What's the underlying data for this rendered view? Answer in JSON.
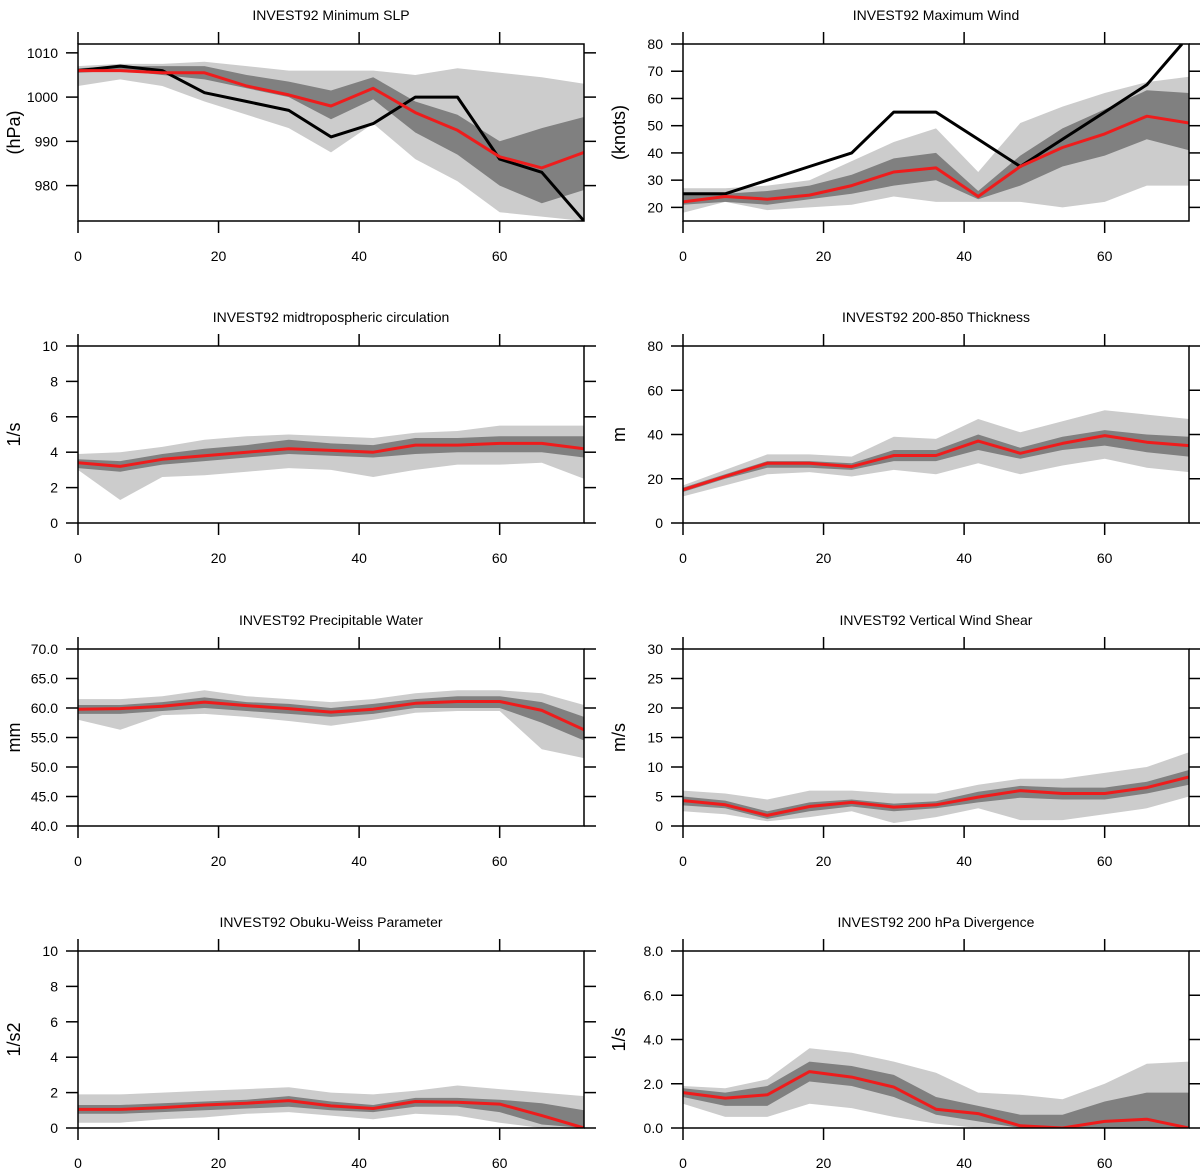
{
  "colors": {
    "outer_band": "#cccccc",
    "inner_band": "#808080",
    "mean_line": "#ee1c1c",
    "obs_line": "#000000"
  },
  "chart_data": [
    {
      "type": "line",
      "title": "INVEST92 Minimum SLP",
      "ylabel": "(hPa)",
      "xlim": [
        0,
        72
      ],
      "ylim": [
        972,
        1012
      ],
      "xticks": [
        0,
        20,
        40,
        60
      ],
      "xtick_labels": [
        "0",
        "20",
        "40",
        "60"
      ],
      "yticks": [
        980,
        990,
        1000,
        1010
      ],
      "ytick_labels": [
        "980",
        "990",
        "1000",
        "1010"
      ],
      "x": [
        0,
        6,
        12,
        18,
        24,
        30,
        36,
        42,
        48,
        54,
        60,
        66,
        72
      ],
      "outer_low": [
        1002.5,
        1004,
        1002.5,
        999,
        996,
        993,
        987.5,
        994,
        986,
        981,
        974,
        973,
        972
      ],
      "outer_high": [
        1007,
        1007.5,
        1007.5,
        1008,
        1007,
        1006,
        1006,
        1006,
        1005,
        1006.5,
        1005.5,
        1004.5,
        1003
      ],
      "inner_low": [
        1005.5,
        1006,
        1005,
        1004,
        1002,
        1000,
        995,
        999.5,
        992,
        987,
        980,
        976,
        979
      ],
      "inner_high": [
        1006.5,
        1007,
        1007,
        1007,
        1005,
        1003.5,
        1001.5,
        1004.5,
        999,
        996,
        990,
        993,
        995.5
      ],
      "mean": [
        1006,
        1006,
        1005.5,
        1005.5,
        1002.5,
        1000.5,
        998,
        1002,
        996.5,
        992.5,
        986.5,
        984,
        987.5
      ],
      "obs_x": [
        0,
        6,
        12,
        18,
        24,
        30,
        36,
        42,
        48,
        54,
        60,
        66,
        72
      ],
      "obs": [
        1006,
        1007,
        1006,
        1001,
        999,
        997,
        991,
        994,
        1000,
        1000,
        986,
        983,
        972
      ]
    },
    {
      "type": "line",
      "title": "INVEST92 Maximum Wind",
      "ylabel": "(knots)",
      "xlim": [
        0,
        72
      ],
      "ylim": [
        15,
        80
      ],
      "xticks": [
        0,
        20,
        40,
        60
      ],
      "xtick_labels": [
        "0",
        "20",
        "40",
        "60"
      ],
      "yticks": [
        20,
        30,
        40,
        50,
        60,
        70,
        80
      ],
      "ytick_labels": [
        "20",
        "30",
        "40",
        "50",
        "60",
        "70",
        "80"
      ],
      "x": [
        0,
        6,
        12,
        18,
        24,
        30,
        36,
        42,
        48,
        54,
        60,
        66,
        72
      ],
      "outer_low": [
        18,
        22,
        19,
        20,
        21,
        24,
        22,
        22,
        22,
        20,
        22,
        28,
        28
      ],
      "outer_high": [
        27,
        27,
        28,
        30,
        37,
        44,
        49,
        33,
        51,
        57,
        62,
        66,
        68
      ],
      "inner_low": [
        21,
        22,
        21,
        23,
        25,
        28,
        30,
        23,
        28,
        35,
        39,
        45,
        41
      ],
      "inner_high": [
        25,
        25,
        26,
        28,
        32,
        38,
        40,
        26,
        39,
        49,
        56,
        63,
        62
      ],
      "mean": [
        22,
        24,
        23,
        24.5,
        28,
        33,
        34.5,
        24,
        35,
        42,
        47,
        53.5,
        51
      ],
      "obs_x": [
        0,
        6,
        12,
        18,
        24,
        30,
        36,
        42,
        48,
        54,
        60,
        66,
        71
      ],
      "obs": [
        25,
        25,
        30,
        35,
        40,
        55,
        55,
        45,
        35,
        45,
        55,
        65,
        80
      ]
    },
    {
      "type": "line",
      "title": "INVEST92 midtropospheric circulation",
      "ylabel": "1/s",
      "xlim": [
        0,
        72
      ],
      "ylim": [
        0,
        10
      ],
      "xticks": [
        0,
        20,
        40,
        60
      ],
      "xtick_labels": [
        "0",
        "20",
        "40",
        "60"
      ],
      "yticks": [
        0,
        2,
        4,
        6,
        8,
        10
      ],
      "ytick_labels": [
        "0",
        "2",
        "4",
        "6",
        "8",
        "10"
      ],
      "x": [
        0,
        6,
        12,
        18,
        24,
        30,
        36,
        42,
        48,
        54,
        60,
        66,
        72
      ],
      "outer_low": [
        3.0,
        1.3,
        2.6,
        2.7,
        2.9,
        3.1,
        3.0,
        2.6,
        3.0,
        3.3,
        3.3,
        3.4,
        2.5
      ],
      "outer_high": [
        3.9,
        4.0,
        4.3,
        4.7,
        4.9,
        5.0,
        4.9,
        4.8,
        5.1,
        5.2,
        5.5,
        5.5,
        5.5
      ],
      "inner_low": [
        3.1,
        2.9,
        3.3,
        3.5,
        3.7,
        3.9,
        3.8,
        3.7,
        3.9,
        4.0,
        4.0,
        4.0,
        3.7
      ],
      "inner_high": [
        3.6,
        3.5,
        3.9,
        4.2,
        4.4,
        4.7,
        4.5,
        4.4,
        4.8,
        4.8,
        4.9,
        4.9,
        4.9
      ],
      "mean": [
        3.4,
        3.2,
        3.6,
        3.8,
        4.0,
        4.2,
        4.1,
        4.0,
        4.4,
        4.4,
        4.5,
        4.5,
        4.2
      ]
    },
    {
      "type": "line",
      "title": "INVEST92 200-850 Thickness",
      "ylabel": "m",
      "xlim": [
        0,
        72
      ],
      "ylim": [
        0,
        80
      ],
      "xticks": [
        0,
        20,
        40,
        60
      ],
      "xtick_labels": [
        "0",
        "20",
        "40",
        "60"
      ],
      "yticks": [
        0,
        20,
        40,
        60,
        80
      ],
      "ytick_labels": [
        "0",
        "20",
        "40",
        "60",
        "80"
      ],
      "x": [
        0,
        6,
        12,
        18,
        24,
        30,
        36,
        42,
        48,
        54,
        60,
        66,
        72
      ],
      "outer_low": [
        12,
        17,
        22,
        23,
        21,
        24,
        22,
        27,
        22,
        26,
        29,
        25,
        23
      ],
      "outer_high": [
        17,
        24,
        31,
        31,
        30,
        39,
        38,
        47,
        41,
        46,
        51,
        49,
        47
      ],
      "inner_low": [
        14,
        20,
        25,
        25,
        24,
        28,
        28,
        33,
        29,
        33,
        35,
        32,
        30
      ],
      "inner_high": [
        16,
        22,
        28,
        28,
        27,
        33,
        33,
        40,
        34,
        39,
        42,
        40,
        39
      ],
      "mean": [
        15,
        21,
        27,
        27,
        25.5,
        30.5,
        30.5,
        37,
        31.5,
        36,
        39.5,
        36.5,
        35
      ]
    },
    {
      "type": "line",
      "title": "INVEST92 Precipitable Water",
      "ylabel": "mm",
      "xlim": [
        0,
        72
      ],
      "ylim": [
        40,
        70
      ],
      "xticks": [
        0,
        20,
        40,
        60
      ],
      "xtick_labels": [
        "0",
        "20",
        "40",
        "60"
      ],
      "yticks": [
        40,
        45,
        50,
        55,
        60,
        65,
        70
      ],
      "ytick_labels": [
        "40.0",
        "45.0",
        "50.0",
        "55.0",
        "60.0",
        "65.0",
        "70.0"
      ],
      "x": [
        0,
        6,
        12,
        18,
        24,
        30,
        36,
        42,
        48,
        54,
        60,
        66,
        72
      ],
      "outer_low": [
        58,
        56.3,
        58.8,
        59,
        58.5,
        57.8,
        57,
        58,
        59.2,
        59.5,
        59.5,
        53,
        51.5
      ],
      "outer_high": [
        61.5,
        61.5,
        62,
        63,
        62,
        61.5,
        61,
        61.5,
        62.5,
        63,
        63,
        62.5,
        60.5
      ],
      "inner_low": [
        59,
        59,
        59.5,
        60,
        59.5,
        59,
        58.5,
        59,
        60,
        60,
        60,
        57.5,
        54.5
      ],
      "inner_high": [
        60.5,
        60.5,
        61,
        61.8,
        61,
        60.7,
        60,
        60.7,
        61.5,
        62,
        62,
        61,
        58.5
      ],
      "mean": [
        59.8,
        59.9,
        60.3,
        61,
        60.4,
        59.9,
        59.3,
        59.8,
        60.8,
        61.1,
        61.1,
        59.6,
        56.3
      ]
    },
    {
      "type": "line",
      "title": "INVEST92 Vertical Wind Shear",
      "ylabel": "m/s",
      "xlim": [
        0,
        72
      ],
      "ylim": [
        0,
        30
      ],
      "xticks": [
        0,
        20,
        40,
        60
      ],
      "xtick_labels": [
        "0",
        "20",
        "40",
        "60"
      ],
      "yticks": [
        0,
        5,
        10,
        15,
        20,
        25,
        30
      ],
      "ytick_labels": [
        "0",
        "5",
        "10",
        "15",
        "20",
        "25",
        "30"
      ],
      "x": [
        0,
        6,
        12,
        18,
        24,
        30,
        36,
        42,
        48,
        54,
        60,
        66,
        72
      ],
      "outer_low": [
        2.5,
        2,
        0.8,
        1.5,
        2.5,
        0.5,
        1.5,
        3,
        1,
        1,
        2,
        3,
        5
      ],
      "outer_high": [
        6,
        5.5,
        4.5,
        6,
        6,
        5.5,
        5.5,
        7,
        8,
        8,
        9,
        10,
        12.5
      ],
      "inner_low": [
        3.5,
        3,
        1.2,
        2.5,
        3.3,
        2.5,
        3,
        4,
        4.8,
        4.5,
        4.5,
        5.5,
        7
      ],
      "inner_high": [
        5,
        4.3,
        2.5,
        4,
        4.5,
        3.8,
        4.2,
        5.8,
        6.8,
        6.5,
        6.5,
        7.5,
        9.5
      ],
      "mean": [
        4.3,
        3.6,
        1.8,
        3.3,
        4,
        3.2,
        3.6,
        4.9,
        6,
        5.5,
        5.5,
        6.5,
        8.3
      ]
    },
    {
      "type": "line",
      "title": "INVEST92 Obuku-Weiss Parameter",
      "ylabel": "1/s2",
      "xlim": [
        0,
        72
      ],
      "ylim": [
        0,
        10
      ],
      "xticks": [
        0,
        20,
        40,
        60
      ],
      "xtick_labels": [
        "0",
        "20",
        "40",
        "60"
      ],
      "yticks": [
        0,
        2,
        4,
        6,
        8,
        10
      ],
      "ytick_labels": [
        "0",
        "2",
        "4",
        "6",
        "8",
        "10"
      ],
      "x": [
        0,
        6,
        12,
        18,
        24,
        30,
        36,
        42,
        48,
        54,
        60,
        66,
        72
      ],
      "outer_low": [
        0.3,
        0.3,
        0.5,
        0.6,
        0.8,
        0.9,
        0.7,
        0.5,
        0.8,
        0.7,
        0.3,
        0,
        0
      ],
      "outer_high": [
        1.9,
        1.9,
        2.0,
        2.1,
        2.2,
        2.3,
        2.0,
        1.9,
        2.1,
        2.4,
        2.2,
        2.0,
        1.8
      ],
      "inner_low": [
        0.8,
        0.8,
        0.9,
        1.0,
        1.1,
        1.2,
        1.0,
        0.9,
        1.2,
        1.2,
        0.9,
        0.2,
        0
      ],
      "inner_high": [
        1.3,
        1.3,
        1.4,
        1.5,
        1.6,
        1.8,
        1.5,
        1.3,
        1.7,
        1.7,
        1.6,
        1.4,
        1.0
      ],
      "mean": [
        1.05,
        1.05,
        1.15,
        1.3,
        1.4,
        1.55,
        1.25,
        1.1,
        1.5,
        1.45,
        1.35,
        0.7,
        0
      ]
    },
    {
      "type": "line",
      "title": "INVEST92 200 hPa Divergence",
      "ylabel": "1/s",
      "xlim": [
        0,
        72
      ],
      "ylim": [
        0,
        8
      ],
      "xticks": [
        0,
        20,
        40,
        60
      ],
      "xtick_labels": [
        "0",
        "20",
        "40",
        "60"
      ],
      "yticks": [
        0,
        2,
        4,
        6,
        8
      ],
      "ytick_labels": [
        "0.0",
        "2.0",
        "4.0",
        "6.0",
        "8.0"
      ],
      "x": [
        0,
        6,
        12,
        18,
        24,
        30,
        36,
        42,
        48,
        54,
        60,
        66,
        72
      ],
      "outer_low": [
        1.1,
        0.5,
        0.5,
        1.1,
        0.9,
        0.5,
        0.2,
        0,
        0,
        0,
        0,
        0,
        0
      ],
      "outer_high": [
        1.9,
        1.8,
        2.2,
        3.6,
        3.4,
        3.0,
        2.5,
        1.6,
        1.5,
        1.3,
        2.0,
        2.9,
        3.0
      ],
      "inner_low": [
        1.4,
        1.0,
        1.0,
        2.1,
        1.9,
        1.4,
        0.6,
        0.3,
        0,
        0,
        0,
        0,
        0
      ],
      "inner_high": [
        1.8,
        1.6,
        1.9,
        3.0,
        2.8,
        2.4,
        1.4,
        1.0,
        0.6,
        0.6,
        1.2,
        1.6,
        1.6
      ],
      "mean": [
        1.6,
        1.35,
        1.5,
        2.55,
        2.3,
        1.85,
        0.85,
        0.65,
        0.1,
        0,
        0.3,
        0.4,
        0
      ]
    }
  ]
}
